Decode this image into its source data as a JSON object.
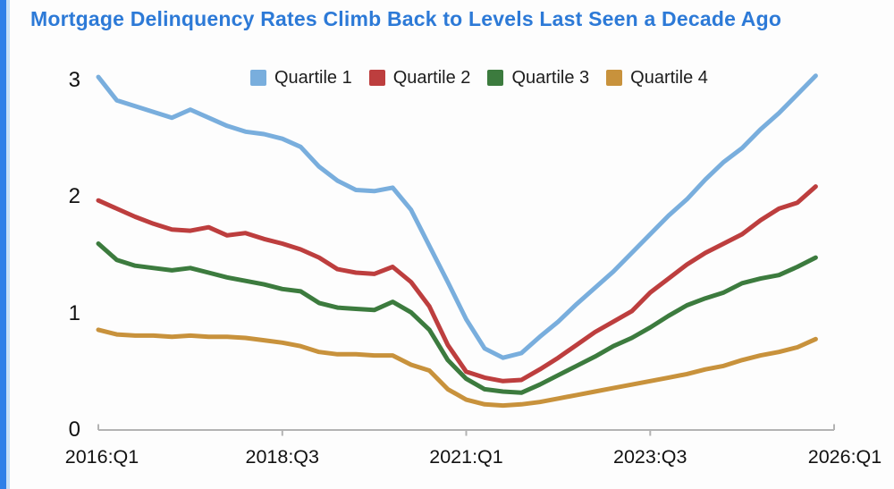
{
  "title": "Mortgage Delinquency Rates Climb Back to Levels Last Seen a Decade Ago",
  "colors": {
    "title_text": "#2d7ad7",
    "accent_bar": "#2f80e8",
    "accent_bar_light": "#c7e0f7",
    "axis": "#b3b3b3",
    "tick_text": "#111111"
  },
  "chart_data": {
    "type": "line",
    "title": "Mortgage Delinquency Rates Climb Back to Levels Last Seen a Decade Ago",
    "xlabel": "",
    "ylabel": "",
    "ylim": [
      0,
      3.1
    ],
    "grid": false,
    "legend_position": "top",
    "x_quarters": [
      "2016:Q1",
      "2016:Q2",
      "2016:Q3",
      "2016:Q4",
      "2017:Q1",
      "2017:Q2",
      "2017:Q3",
      "2017:Q4",
      "2018:Q1",
      "2018:Q2",
      "2018:Q3",
      "2018:Q4",
      "2019:Q1",
      "2019:Q2",
      "2019:Q3",
      "2019:Q4",
      "2020:Q1",
      "2020:Q2",
      "2020:Q3",
      "2020:Q4",
      "2021:Q1",
      "2021:Q2",
      "2021:Q3",
      "2021:Q4",
      "2022:Q1",
      "2022:Q2",
      "2022:Q3",
      "2022:Q4",
      "2023:Q1",
      "2023:Q2",
      "2023:Q3",
      "2023:Q4",
      "2024:Q1",
      "2024:Q2",
      "2024:Q3",
      "2024:Q4",
      "2025:Q1",
      "2025:Q2",
      "2025:Q3",
      "2025:Q4"
    ],
    "series": [
      {
        "name": "Quartile 1",
        "color": "#79aedd",
        "values": [
          3.03,
          2.83,
          2.78,
          2.73,
          2.68,
          2.75,
          2.68,
          2.61,
          2.56,
          2.54,
          2.5,
          2.43,
          2.26,
          2.14,
          2.06,
          2.05,
          2.08,
          1.89,
          1.58,
          1.27,
          0.95,
          0.7,
          0.62,
          0.66,
          0.8,
          0.93,
          1.08,
          1.22,
          1.36,
          1.52,
          1.68,
          1.84,
          1.98,
          2.15,
          2.3,
          2.42,
          2.58,
          2.72,
          2.88,
          3.04
        ]
      },
      {
        "name": "Quartile 2",
        "color": "#bd3e3e",
        "values": [
          1.97,
          1.9,
          1.83,
          1.77,
          1.72,
          1.71,
          1.74,
          1.67,
          1.69,
          1.64,
          1.6,
          1.55,
          1.48,
          1.38,
          1.35,
          1.34,
          1.4,
          1.27,
          1.06,
          0.73,
          0.5,
          0.45,
          0.42,
          0.43,
          0.52,
          0.62,
          0.73,
          0.84,
          0.93,
          1.02,
          1.18,
          1.3,
          1.42,
          1.52,
          1.6,
          1.68,
          1.8,
          1.9,
          1.95,
          2.09
        ]
      },
      {
        "name": "Quartile 3",
        "color": "#3c7b3e",
        "values": [
          1.6,
          1.46,
          1.41,
          1.39,
          1.37,
          1.39,
          1.35,
          1.31,
          1.28,
          1.25,
          1.21,
          1.19,
          1.09,
          1.05,
          1.04,
          1.03,
          1.1,
          1.01,
          0.86,
          0.6,
          0.44,
          0.35,
          0.33,
          0.32,
          0.39,
          0.47,
          0.55,
          0.63,
          0.72,
          0.79,
          0.88,
          0.98,
          1.07,
          1.13,
          1.18,
          1.26,
          1.3,
          1.33,
          1.4,
          1.48
        ]
      },
      {
        "name": "Quartile 4",
        "color": "#c8923c",
        "values": [
          0.86,
          0.82,
          0.81,
          0.81,
          0.8,
          0.81,
          0.8,
          0.8,
          0.79,
          0.77,
          0.75,
          0.72,
          0.67,
          0.65,
          0.65,
          0.64,
          0.64,
          0.56,
          0.51,
          0.35,
          0.26,
          0.22,
          0.21,
          0.22,
          0.24,
          0.27,
          0.3,
          0.33,
          0.36,
          0.39,
          0.42,
          0.45,
          0.48,
          0.52,
          0.55,
          0.6,
          0.64,
          0.67,
          0.71,
          0.78
        ]
      }
    ],
    "y_ticks": [
      3,
      2,
      1,
      0
    ],
    "x_axis_ticks": [
      {
        "q": 0,
        "label": "2016:Q1"
      },
      {
        "q": 10,
        "label": "2018:Q3"
      },
      {
        "q": 20,
        "label": "2021:Q1"
      },
      {
        "q": 30,
        "label": "2023:Q3"
      },
      {
        "q": 40,
        "label": "2026:Q1"
      }
    ]
  }
}
